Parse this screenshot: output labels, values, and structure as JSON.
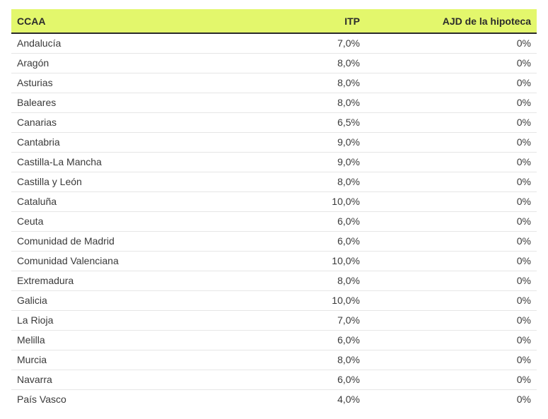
{
  "table": {
    "headers": {
      "region": "CCAA",
      "itp": "ITP",
      "ajd": "AJD de la hipoteca"
    },
    "rows": [
      {
        "region": "Andalucía",
        "itp": "7,0%",
        "ajd": "0%"
      },
      {
        "region": "Aragón",
        "itp": "8,0%",
        "ajd": "0%"
      },
      {
        "region": "Asturias",
        "itp": "8,0%",
        "ajd": "0%"
      },
      {
        "region": "Baleares",
        "itp": "8,0%",
        "ajd": "0%"
      },
      {
        "region": "Canarias",
        "itp": "6,5%",
        "ajd": "0%"
      },
      {
        "region": "Cantabria",
        "itp": "9,0%",
        "ajd": "0%"
      },
      {
        "region": "Castilla-La Mancha",
        "itp": "9,0%",
        "ajd": "0%"
      },
      {
        "region": "Castilla y León",
        "itp": "8,0%",
        "ajd": "0%"
      },
      {
        "region": "Cataluña",
        "itp": "10,0%",
        "ajd": "0%"
      },
      {
        "region": "Ceuta",
        "itp": "6,0%",
        "ajd": "0%"
      },
      {
        "region": "Comunidad de Madrid",
        "itp": "6,0%",
        "ajd": "0%"
      },
      {
        "region": "Comunidad Valenciana",
        "itp": "10,0%",
        "ajd": "0%"
      },
      {
        "region": "Extremadura",
        "itp": "8,0%",
        "ajd": "0%"
      },
      {
        "region": "Galicia",
        "itp": "10,0%",
        "ajd": "0%"
      },
      {
        "region": "La Rioja",
        "itp": "7,0%",
        "ajd": "0%"
      },
      {
        "region": "Melilla",
        "itp": "6,0%",
        "ajd": "0%"
      },
      {
        "region": "Murcia",
        "itp": "8,0%",
        "ajd": "0%"
      },
      {
        "region": "Navarra",
        "itp": "6,0%",
        "ajd": "0%"
      },
      {
        "region": "País Vasco",
        "itp": "4,0%",
        "ajd": "0%"
      }
    ]
  },
  "colors": {
    "header_background": "#e3f76c",
    "header_border": "#2b2b2b",
    "row_divider": "#e6e6e6"
  }
}
